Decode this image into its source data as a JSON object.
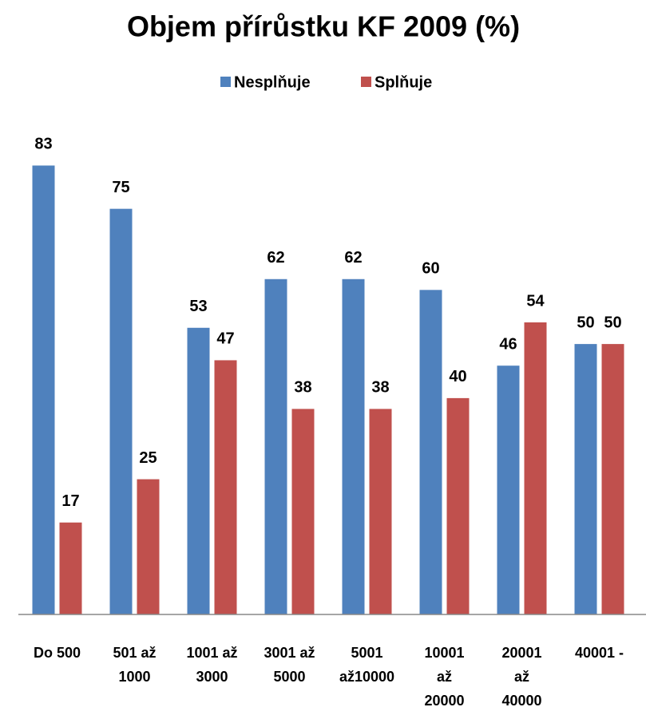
{
  "chart_data": {
    "type": "bar",
    "title": "Objem přírůstku KF 2009 (%)",
    "categories": [
      "Do 500",
      "501 až 1000",
      "1001 až 3000",
      "3001 až 5000",
      "5001 až10000",
      "10001 až 20000",
      "20001 až 40000",
      "40001 -"
    ],
    "series": [
      {
        "name": "Nesplňuje",
        "color": "#4f81bd",
        "values": [
          83,
          75,
          53,
          62,
          62,
          60,
          46,
          50
        ]
      },
      {
        "name": "Splňuje",
        "color": "#c0504d",
        "values": [
          17,
          25,
          47,
          38,
          38,
          40,
          54,
          50
        ]
      }
    ],
    "ylim": [
      0,
      90
    ],
    "legend": "top"
  }
}
